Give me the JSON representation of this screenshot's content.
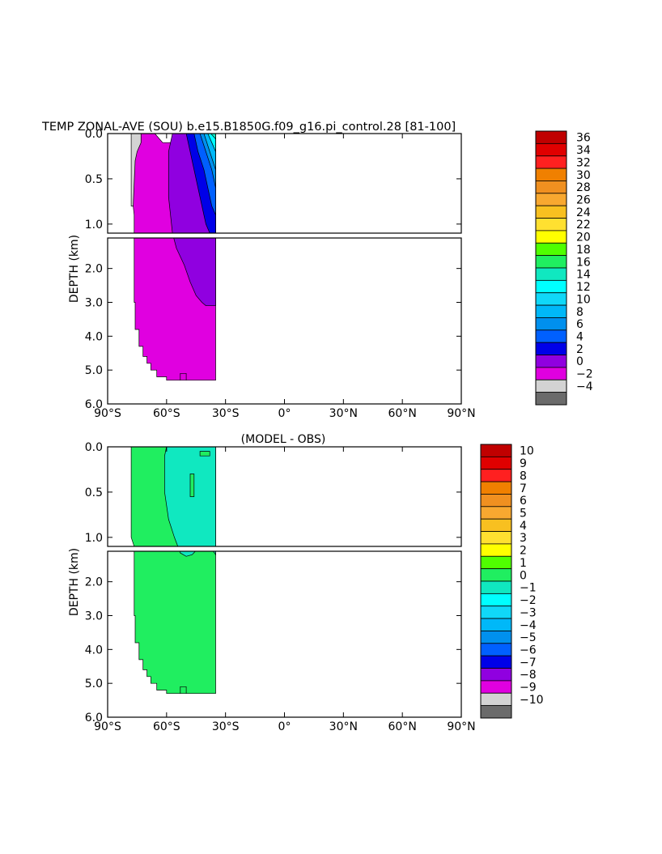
{
  "figure": {
    "title": "TEMP ZONAL-AVE (SOU) b.e15.B1850G.f09_g16.pi_control.28 [81-100]"
  },
  "chart_data": [
    {
      "type": "heatmap",
      "name": "temperature",
      "title": "TEMP ZONAL-AVE (SOU) b.e15.B1850G.f09_g16.pi_control.28 [81-100]",
      "ylabel": "DEPTH (km)",
      "xlabel": "",
      "x_tick_labels": [
        "90°S",
        "60°S",
        "30°S",
        "0°",
        "30°N",
        "60°N",
        "90°N"
      ],
      "x_ticks": [
        -90,
        -60,
        -30,
        0,
        30,
        60,
        90
      ],
      "xlim": [
        -90,
        90
      ],
      "upper_panel": {
        "ylim": [
          0,
          1.1
        ],
        "y_ticks": [
          0.0,
          0.5,
          1.0
        ],
        "y_tick_labels": [
          "0.0",
          "0.5",
          "1.0"
        ]
      },
      "lower_panel": {
        "ylim": [
          1.1,
          6.0
        ],
        "y_ticks": [
          2.0,
          3.0,
          4.0,
          5.0,
          6.0
        ],
        "y_tick_labels": [
          "2.0",
          "3.0",
          "4.0",
          "5.0",
          "6.0"
        ]
      },
      "colorbar": {
        "labels": [
          "36",
          "34",
          "32",
          "30",
          "28",
          "26",
          "24",
          "22",
          "20",
          "18",
          "16",
          "14",
          "12",
          "10",
          "8",
          "6",
          "4",
          "2",
          "0",
          "−2",
          "−4"
        ],
        "colors": [
          "#c00000",
          "#e00000",
          "#ff2020",
          "#f08000",
          "#f09020",
          "#f8a830",
          "#f8c020",
          "#ffe030",
          "#ffff00",
          "#50ff00",
          "#20ee60",
          "#10e8c0",
          "#00ffff",
          "#10d8f8",
          "#00b8f8",
          "#0090ee",
          "#0060ff",
          "#0000e8",
          "#9000e0",
          "#e000e0",
          "#d3d3d3",
          "#6b6b6b"
        ]
      },
      "regions": [
        {
          "value_range": "-2 to 0",
          "color": "#d3d3d3",
          "lat_range": [
            -78,
            -70
          ],
          "depth_range": [
            0,
            0.8
          ]
        },
        {
          "value_range": "0 to 2",
          "color": "#e000e0",
          "lat_range": [
            -78,
            -35
          ],
          "depth_range": [
            0,
            5.3
          ]
        },
        {
          "value_range": "2 to 4",
          "color": "#9000e0",
          "lat_range": [
            -57,
            -35
          ],
          "depth_range": [
            0,
            3.1
          ]
        },
        {
          "value_range": "4 to 6",
          "color": "#0000e8",
          "lat_range": [
            -50,
            -35
          ],
          "depth_range": [
            0,
            1.1
          ]
        },
        {
          "value_range": "6 to 8",
          "color": "#0060ff",
          "lat_range": [
            -45,
            -35
          ],
          "depth_range": [
            0,
            0.9
          ]
        },
        {
          "value_range": "8 to 10",
          "color": "#0090ee",
          "lat_range": [
            -42,
            -35
          ],
          "depth_range": [
            0,
            0.6
          ]
        },
        {
          "value_range": "10 to 16",
          "color": "#10e8c0",
          "lat_range": [
            -38,
            -35
          ],
          "depth_range": [
            0,
            0.2
          ]
        }
      ]
    },
    {
      "type": "heatmap",
      "name": "difference",
      "title": "(MODEL - OBS)",
      "ylabel": "DEPTH (km)",
      "xlabel": "",
      "x_tick_labels": [
        "90°S",
        "60°S",
        "30°S",
        "0°",
        "30°N",
        "60°N",
        "90°N"
      ],
      "x_ticks": [
        -90,
        -60,
        -30,
        0,
        30,
        60,
        90
      ],
      "xlim": [
        -90,
        90
      ],
      "upper_panel": {
        "ylim": [
          0,
          1.1
        ],
        "y_ticks": [
          0.0,
          0.5,
          1.0
        ],
        "y_tick_labels": [
          "0.0",
          "0.5",
          "1.0"
        ]
      },
      "lower_panel": {
        "ylim": [
          1.1,
          6.0
        ],
        "y_ticks": [
          2.0,
          3.0,
          4.0,
          5.0,
          6.0
        ],
        "y_tick_labels": [
          "2.0",
          "3.0",
          "4.0",
          "5.0",
          "6.0"
        ]
      },
      "colorbar": {
        "labels": [
          "10",
          "9",
          "8",
          "7",
          "6",
          "5",
          "4",
          "3",
          "2",
          "1",
          "0",
          "−1",
          "−2",
          "−3",
          "−4",
          "−5",
          "−6",
          "−7",
          "−8",
          "−9",
          "−10"
        ],
        "colors": [
          "#c00000",
          "#e00000",
          "#ff2020",
          "#f08000",
          "#f09020",
          "#f8a830",
          "#f8c020",
          "#ffe030",
          "#ffff00",
          "#50ff00",
          "#20ee60",
          "#10e8c0",
          "#00ffff",
          "#10d8f8",
          "#00b8f8",
          "#0090ee",
          "#0060ff",
          "#0000e8",
          "#9000e0",
          "#e000e0",
          "#d3d3d3",
          "#6b6b6b"
        ]
      },
      "regions": [
        {
          "value_range": "0 to 1",
          "color": "#20ee60",
          "lat_range": [
            -78,
            -35
          ],
          "depth_range": [
            0,
            5.3
          ]
        },
        {
          "value_range": "-1 to 0",
          "color": "#10e8c0",
          "lat_range": [
            -60,
            -35
          ],
          "depth_range": [
            0,
            1.2
          ]
        }
      ]
    }
  ]
}
